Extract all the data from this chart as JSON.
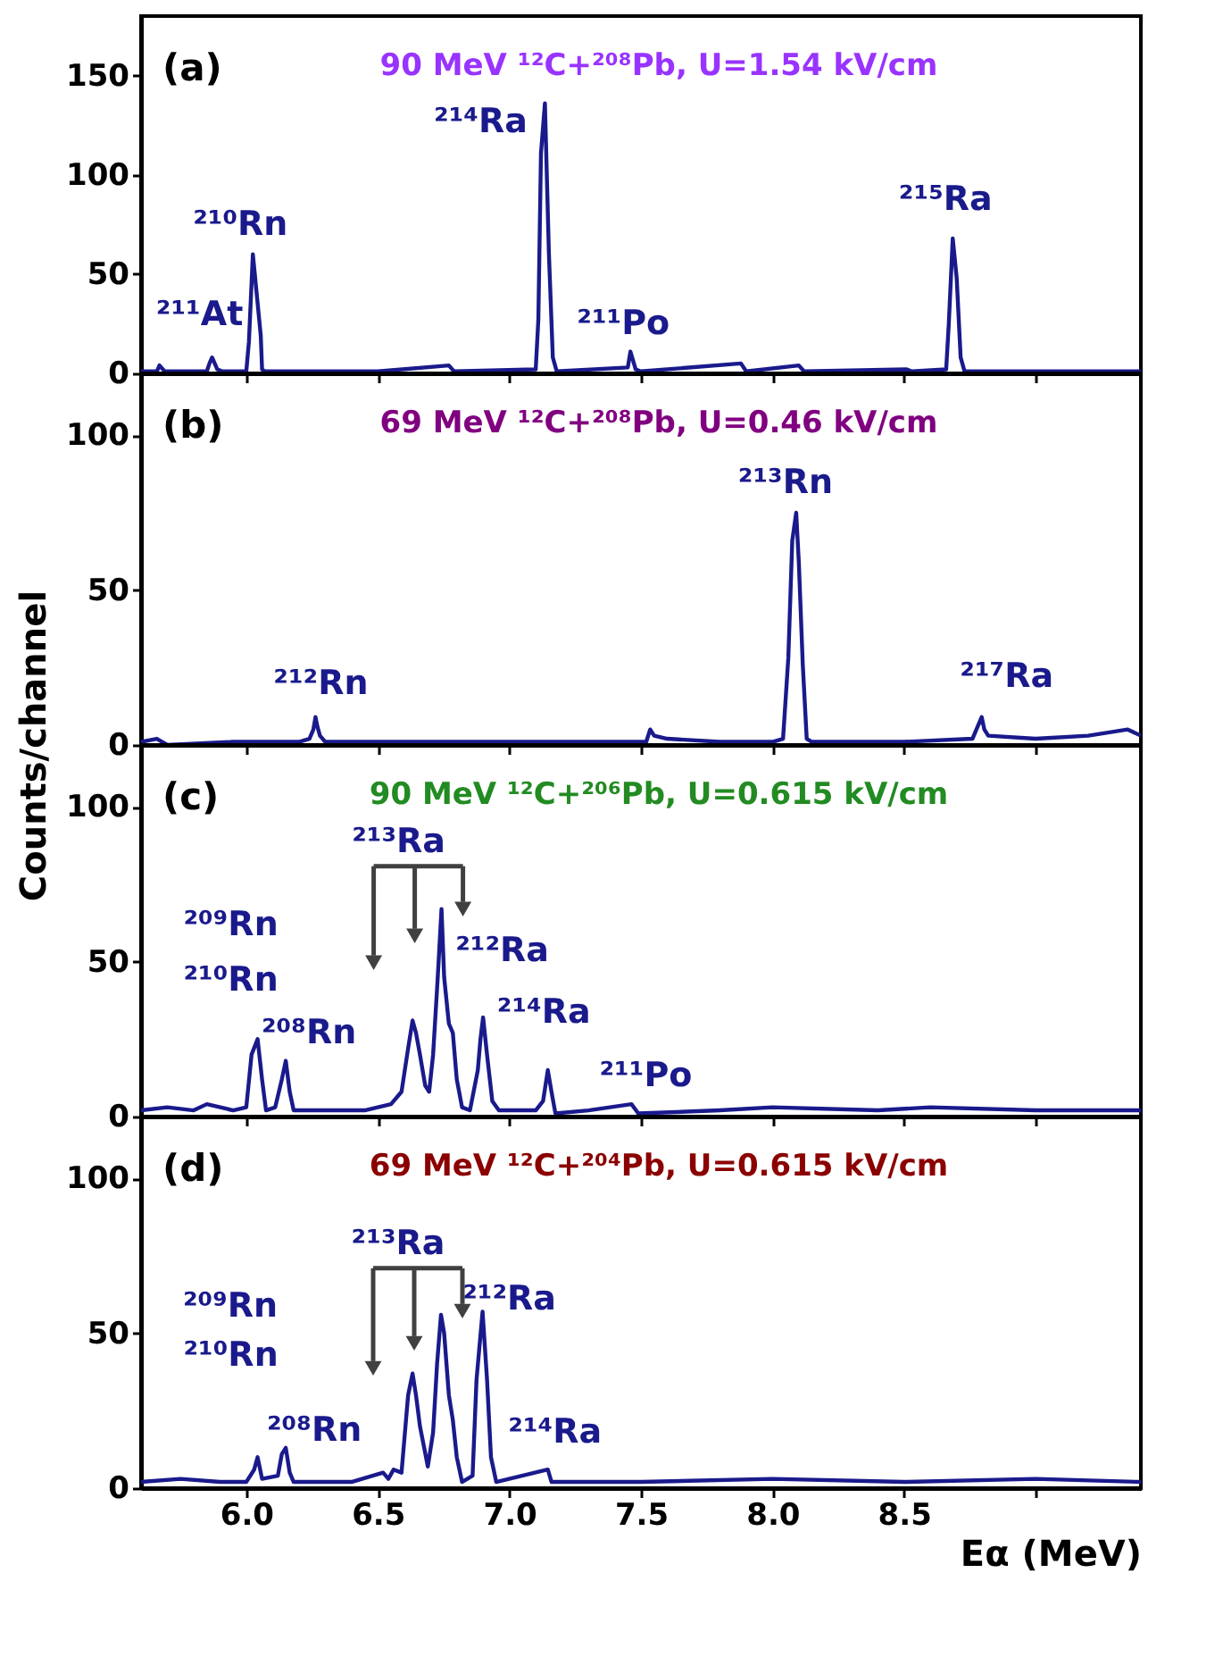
{
  "chart_data": [
    {
      "type": "line",
      "title": "90 MeV ¹²C+²⁰⁸Pb, U=1.54 kV/cm",
      "xlim": [
        5.6,
        9.4
      ],
      "ylim": [
        0,
        180
      ],
      "yticks": [
        0,
        50,
        100,
        150
      ],
      "tick_labels": "y",
      "series": [
        {
          "color": "#1a1a8c",
          "x": [
            5.6,
            5.66,
            5.67,
            5.69,
            5.85,
            5.86,
            5.87,
            5.89,
            5.91,
            6.0,
            6.01,
            6.025,
            6.055,
            6.06,
            6.07,
            6.09,
            6.5,
            6.77,
            6.79,
            7.1,
            7.11,
            7.12,
            7.135,
            7.15,
            7.165,
            7.18,
            7.45,
            7.46,
            7.48,
            7.5,
            7.88,
            7.9,
            8.1,
            8.12,
            8.51,
            8.53,
            8.66,
            8.67,
            8.685,
            8.7,
            8.715,
            8.73,
            9.4
          ],
          "values": [
            1,
            1,
            4,
            1,
            1,
            5,
            8,
            2,
            1,
            1,
            16,
            60,
            19,
            2,
            1,
            1,
            1,
            4,
            1,
            2,
            27,
            111,
            136,
            61,
            8,
            1,
            3,
            11,
            2,
            1,
            5,
            1,
            4,
            1,
            2,
            1,
            2,
            25,
            68,
            48,
            8,
            1,
            1
          ]
        }
      ],
      "annotations": [
        "(a)",
        {
          "text": "²¹¹At",
          "x": 5.87,
          "y": 8
        },
        {
          "text": "²¹⁰Rn",
          "x": 6.025,
          "y": 60
        },
        {
          "text": "²¹⁴Ra",
          "x": 7.135,
          "y": 136
        },
        {
          "text": "²¹¹Po",
          "x": 7.46,
          "y": 11
        },
        {
          "text": "²¹⁵Ra",
          "x": 8.685,
          "y": 68
        }
      ]
    },
    {
      "type": "line",
      "title": "69 MeV ¹²C+²⁰⁸Pb, U=0.46 kV/cm",
      "ylabel": "Counts/channel",
      "xlim": [
        5.6,
        9.4
      ],
      "ylim": [
        0,
        120
      ],
      "yticks": [
        0,
        50,
        100
      ],
      "tick_labels": "y",
      "series": [
        {
          "color": "#1a1a8c",
          "x": [
            5.6,
            5.66,
            5.7,
            5.95,
            6.2,
            6.24,
            6.255,
            6.263,
            6.27,
            6.28,
            6.3,
            6.6,
            6.9,
            7.32,
            7.52,
            7.535,
            7.55,
            7.6,
            7.8,
            8.0,
            8.04,
            8.06,
            8.075,
            8.09,
            8.1,
            8.115,
            8.13,
            8.15,
            8.5,
            8.76,
            8.78,
            8.795,
            8.805,
            8.82,
            9.0,
            9.2,
            9.35,
            9.4
          ],
          "values": [
            1,
            2,
            0,
            1,
            1,
            2,
            5,
            9,
            6,
            3,
            1,
            1,
            1,
            1,
            1,
            5,
            3,
            2,
            1,
            1,
            2,
            28,
            66,
            75,
            59,
            26,
            2,
            1,
            1,
            2,
            6,
            9,
            5,
            3,
            2,
            3,
            5,
            3
          ]
        }
      ],
      "annotations": [
        "(b)",
        {
          "text": "²¹²Rn",
          "x": 6.263,
          "y": 9
        },
        {
          "text": "²¹³Rn",
          "x": 8.09,
          "y": 75
        },
        {
          "text": "²¹⁷Ra",
          "x": 8.795,
          "y": 9
        }
      ]
    },
    {
      "type": "line",
      "title": "90 MeV ¹²C+²⁰⁶Pb, U=0.615 kV/cm",
      "xlim": [
        5.6,
        9.4
      ],
      "ylim": [
        0,
        120
      ],
      "yticks": [
        0,
        50,
        100
      ],
      "tick_labels": "y",
      "series": [
        {
          "color": "#1a1a8c",
          "x": [
            5.6,
            5.7,
            5.8,
            5.85,
            5.95,
            6.0,
            6.02,
            6.043,
            6.06,
            6.075,
            6.11,
            6.135,
            6.15,
            6.165,
            6.18,
            6.3,
            6.45,
            6.55,
            6.59,
            6.615,
            6.632,
            6.645,
            6.66,
            6.68,
            6.695,
            6.71,
            6.727,
            6.742,
            6.752,
            6.77,
            6.785,
            6.8,
            6.82,
            6.85,
            6.88,
            6.89,
            6.9,
            6.915,
            6.935,
            6.96,
            7.1,
            7.128,
            7.146,
            7.16,
            7.175,
            7.3,
            7.464,
            7.49,
            7.8,
            8.0,
            8.4,
            8.6,
            9.0,
            9.4
          ],
          "values": [
            2,
            3,
            2,
            4,
            2,
            3,
            20,
            25,
            12,
            2,
            3,
            12,
            18,
            8,
            2,
            2,
            2,
            4,
            8,
            22,
            31,
            27,
            20,
            10,
            8,
            20,
            44,
            67,
            45,
            30,
            27,
            12,
            3,
            2,
            15,
            25,
            32,
            20,
            5,
            2,
            2,
            5,
            15,
            8,
            1,
            2,
            4,
            1,
            2,
            3,
            2,
            3,
            2,
            2
          ]
        }
      ],
      "annotations": [
        "(c)",
        {
          "text": "²¹³Ra",
          "x": 6.742,
          "y": 67
        },
        {
          "text": "²⁰⁹Rn",
          "x": 6.043,
          "y": 25
        },
        {
          "text": "²¹⁰Rn",
          "x": 6.043,
          "y": 25
        },
        {
          "text": "²⁰⁸Rn",
          "x": 6.15,
          "y": 18
        },
        {
          "text": "²¹²Ra",
          "x": 6.742,
          "y": 67
        },
        {
          "text": "²¹⁴Ra",
          "x": 6.9,
          "y": 32
        },
        {
          "text": "²¹¹Po",
          "x": 7.464,
          "y": 4
        }
      ]
    },
    {
      "type": "line",
      "title": "69 MeV ¹²C+²⁰⁴Pb, U=0.615 kV/cm",
      "xlabel": "Eα (MeV)",
      "xlim": [
        5.6,
        9.4
      ],
      "ylim": [
        0,
        120
      ],
      "yticks": [
        0,
        50,
        100
      ],
      "xticks": [
        {
          "value": 6,
          "label": "6.0"
        },
        {
          "value": 6.5,
          "label": "6.5"
        },
        {
          "value": 7,
          "label": "7.0"
        },
        {
          "value": 7.5,
          "label": "7.5"
        },
        {
          "value": 8,
          "label": "8.0"
        },
        {
          "value": 8.5,
          "label": "8.5"
        },
        {
          "value": 9,
          "label": null
        }
      ],
      "series": [
        {
          "color": "#1a1a8c",
          "x": [
            5.6,
            5.75,
            5.9,
            6.0,
            6.03,
            6.043,
            6.06,
            6.12,
            6.135,
            6.15,
            6.165,
            6.18,
            6.4,
            6.52,
            6.54,
            6.56,
            6.59,
            6.615,
            6.632,
            6.645,
            6.66,
            6.69,
            6.71,
            6.725,
            6.74,
            6.752,
            6.77,
            6.785,
            6.8,
            6.82,
            6.86,
            6.875,
            6.898,
            6.915,
            6.93,
            6.95,
            7.146,
            7.16,
            7.5,
            8.0,
            8.5,
            9.0,
            9.4
          ],
          "values": [
            2,
            3,
            2,
            2,
            6,
            10,
            3,
            4,
            11,
            13,
            5,
            2,
            2,
            5,
            3,
            6,
            5,
            30,
            37,
            30,
            20,
            7,
            18,
            40,
            56,
            50,
            30,
            22,
            10,
            2,
            4,
            35,
            57,
            35,
            10,
            2,
            6,
            2,
            2,
            3,
            2,
            3,
            2
          ]
        }
      ],
      "annotations": [
        "(d)",
        "²⁰⁹Rn",
        {
          "text": "²¹³Ra",
          "x": 6.74,
          "y": 56
        },
        {
          "text": "²¹⁰Rn",
          "x": 6.043,
          "y": 10
        },
        {
          "text": "²⁰⁸Rn",
          "x": 6.15,
          "y": 13
        },
        {
          "text": "²¹²Ra",
          "x": 6.898,
          "y": 57
        },
        {
          "text": "²¹⁴Ra",
          "x": 7.146,
          "y": 6
        }
      ]
    }
  ]
}
